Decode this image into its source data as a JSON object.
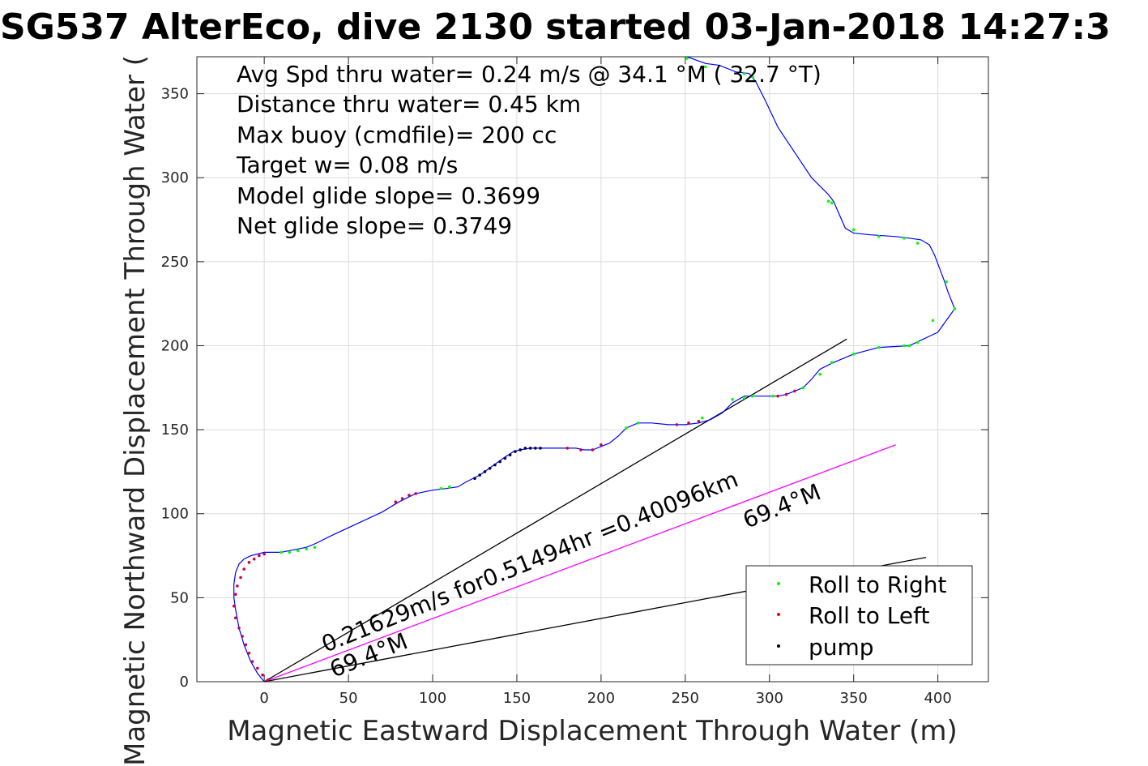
{
  "chart_data": {
    "type": "line",
    "title": "SG537 AlterEco, dive 2130 started 03-Jan-2018 14:27:3",
    "xlabel": "Magnetic Eastward Displacement Through Water (m)",
    "ylabel": "Magnetic Northward Displacement Through Water (",
    "xlim": [
      -40,
      430
    ],
    "ylim": [
      0,
      372
    ],
    "xticks": [
      0,
      50,
      100,
      150,
      200,
      250,
      300,
      350,
      400
    ],
    "yticks": [
      0,
      50,
      100,
      150,
      200,
      250,
      300,
      350
    ],
    "grid": true,
    "annotations": [
      "Avg Spd thru water=  0.24 m/s @  34.1 °M ( 32.7 °T)",
      "Distance thru water=  0.45 km",
      "Max buoy (cmdfile)= 200 cc",
      "Target w= 0.08 m/s",
      "Model glide slope= 0.3699",
      "Net glide slope= 0.3749"
    ],
    "rotated_labels": [
      "0.21629m/s for0.51494hr =0.40096km",
      "69.4°M",
      "69.4°M"
    ],
    "legend": {
      "position": "bottom-right",
      "entries": [
        {
          "label": "Roll to Right",
          "color": "#00ff00"
        },
        {
          "label": "Roll to Left",
          "color": "#ff0000"
        },
        {
          "label": "pump",
          "color": "#000000"
        }
      ]
    },
    "track": {
      "name": "track",
      "color": "#0000ff",
      "x": [
        0,
        -4,
        -8,
        -12,
        -15,
        -17,
        -18,
        -18,
        -17,
        -15,
        -12,
        -8,
        -4,
        0,
        5,
        10,
        15,
        20,
        25,
        30,
        40,
        55,
        70,
        80,
        90,
        100,
        108,
        115,
        120,
        128,
        135,
        142,
        148,
        152,
        158,
        165,
        175,
        185,
        190,
        195,
        200,
        205,
        210,
        215,
        222,
        230,
        240,
        250,
        258,
        265,
        272,
        278,
        285,
        295,
        305,
        310,
        315,
        320,
        325,
        330,
        338,
        350,
        365,
        383,
        400,
        410,
        406,
        404,
        398,
        395,
        390,
        383,
        375,
        360,
        350,
        345,
        338,
        335,
        325,
        315,
        305,
        298,
        292,
        288,
        280,
        270,
        262,
        251
      ],
      "y": [
        0,
        5,
        12,
        22,
        32,
        43,
        50,
        58,
        65,
        70,
        73,
        75,
        76,
        77,
        77,
        77,
        78,
        79,
        80,
        82,
        87,
        94,
        101,
        107,
        112,
        114,
        115,
        116,
        119,
        123,
        128,
        133,
        137,
        138,
        139,
        139,
        139,
        139,
        138,
        138,
        140,
        142,
        146,
        151,
        154,
        154,
        153,
        153,
        154,
        156,
        160,
        166,
        170,
        170,
        170,
        171,
        173,
        175,
        180,
        186,
        190,
        195,
        199,
        200,
        208,
        222,
        232,
        238,
        254,
        260,
        263,
        264,
        265,
        266,
        267,
        270,
        286,
        290,
        300,
        315,
        330,
        345,
        357,
        362,
        363,
        367,
        368,
        372
      ],
      "roll_right_x": [
        10,
        15,
        20,
        25,
        30,
        105,
        110,
        215,
        222,
        260,
        278,
        285,
        290,
        302,
        320,
        330,
        337,
        350,
        365,
        380,
        383,
        388,
        397,
        405,
        410,
        388,
        380,
        365,
        350,
        337,
        335,
        290,
        285,
        262,
        251
      ],
      "roll_right_y": [
        77,
        77,
        78,
        79,
        80,
        115,
        116,
        151,
        154,
        157,
        168,
        169,
        170,
        170,
        175,
        183,
        190,
        195,
        199,
        200,
        200,
        202,
        215,
        238,
        222,
        261,
        264,
        265,
        269,
        285,
        286,
        360,
        362,
        366,
        371
      ],
      "roll_left_x": [
        -18,
        -17,
        -16,
        -14,
        -12,
        -9,
        -6,
        -3,
        0,
        -17,
        -15,
        -13,
        -11,
        -9,
        -7,
        -4,
        -1,
        2,
        78,
        82,
        86,
        90,
        180,
        188,
        195,
        200,
        245,
        252,
        258,
        305,
        310,
        315
      ],
      "roll_left_y": [
        45,
        52,
        57,
        62,
        67,
        71,
        73,
        75,
        76,
        38,
        32,
        27,
        22,
        17,
        12,
        8,
        4,
        1,
        107,
        109,
        111,
        112,
        139,
        138,
        138,
        141,
        153,
        154,
        155,
        170,
        171,
        173
      ],
      "pump_x": [
        125,
        128,
        131,
        134,
        137,
        140,
        143,
        146,
        149,
        152,
        155,
        158,
        161,
        164
      ],
      "pump_y": [
        121,
        123,
        125,
        127,
        129,
        131,
        133,
        135,
        137,
        138,
        139,
        139,
        139,
        139
      ]
    },
    "lines": [
      {
        "name": "glide",
        "color": "#000000",
        "x": [
          0,
          346
        ],
        "y": [
          0,
          204
        ]
      },
      {
        "name": "heading",
        "color": "#ff00ff",
        "x": [
          0,
          375
        ],
        "y": [
          0,
          141
        ]
      },
      {
        "name": "current",
        "color": "#000000",
        "x": [
          0,
          393
        ],
        "y": [
          0,
          74
        ]
      }
    ]
  }
}
